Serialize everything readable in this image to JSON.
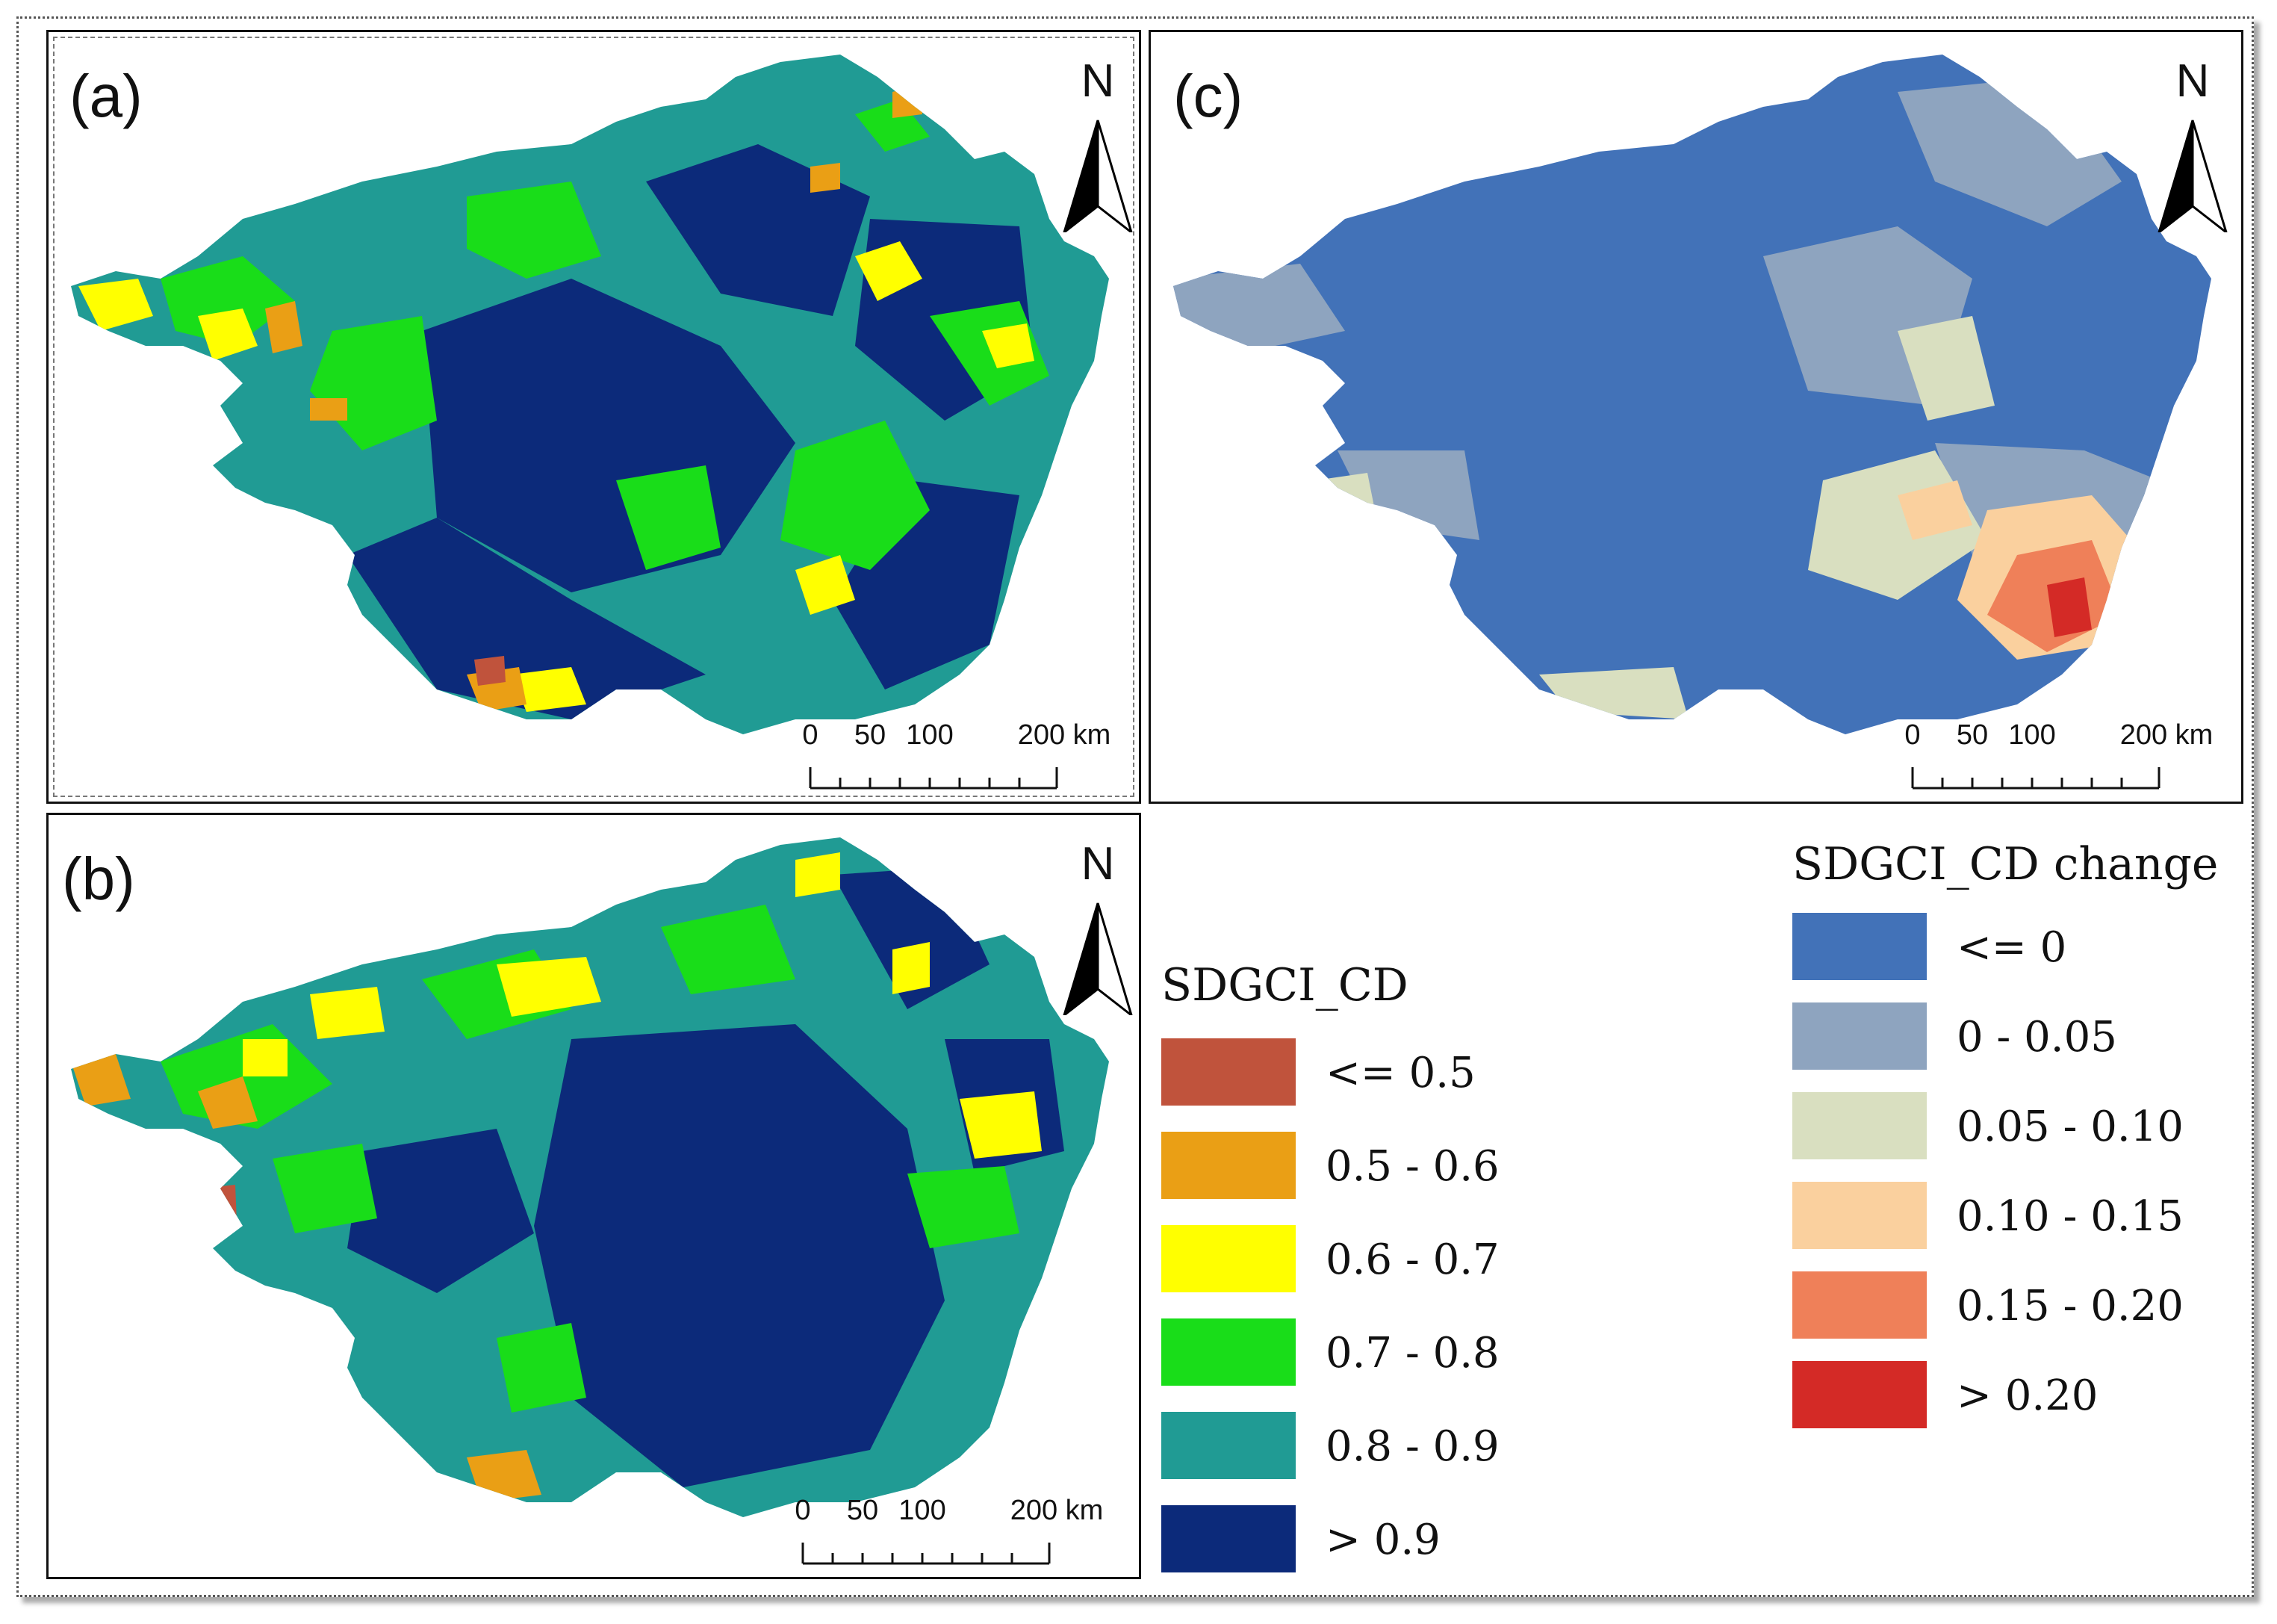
{
  "panels": {
    "a": {
      "label": "(a)"
    },
    "b": {
      "label": "(b)"
    },
    "c": {
      "label": "(c)"
    }
  },
  "north_arrow": {
    "letter": "N"
  },
  "scale_bar": {
    "ticks": [
      "0",
      "50",
      "100",
      "200 km"
    ]
  },
  "legend_cd": {
    "title": "SDGCI_CD",
    "classes": [
      {
        "label": "<= 0.5",
        "color": "#c0533c"
      },
      {
        "label": "0.5 - 0.6",
        "color": "#ea9f15"
      },
      {
        "label": "0.6 - 0.7",
        "color": "#ffff00"
      },
      {
        "label": "0.7 - 0.8",
        "color": "#19dd19"
      },
      {
        "label": "0.8 - 0.9",
        "color": "#209b94"
      },
      {
        "label": "> 0.9",
        "color": "#0c2a7a"
      }
    ]
  },
  "legend_change": {
    "title": "SDGCI_CD change",
    "classes": [
      {
        "label": "<= 0",
        "color": "#4272b8"
      },
      {
        "label": "0 - 0.05",
        "color": "#8ea4bf"
      },
      {
        "label": "0.05 - 0.10",
        "color": "#d9dfc0"
      },
      {
        "label": "0.10 - 0.15",
        "color": "#fad09e"
      },
      {
        "label": "0.15 - 0.20",
        "color": "#ef8059"
      },
      {
        "label": "> 0.20",
        "color": "#d42a26"
      }
    ]
  }
}
